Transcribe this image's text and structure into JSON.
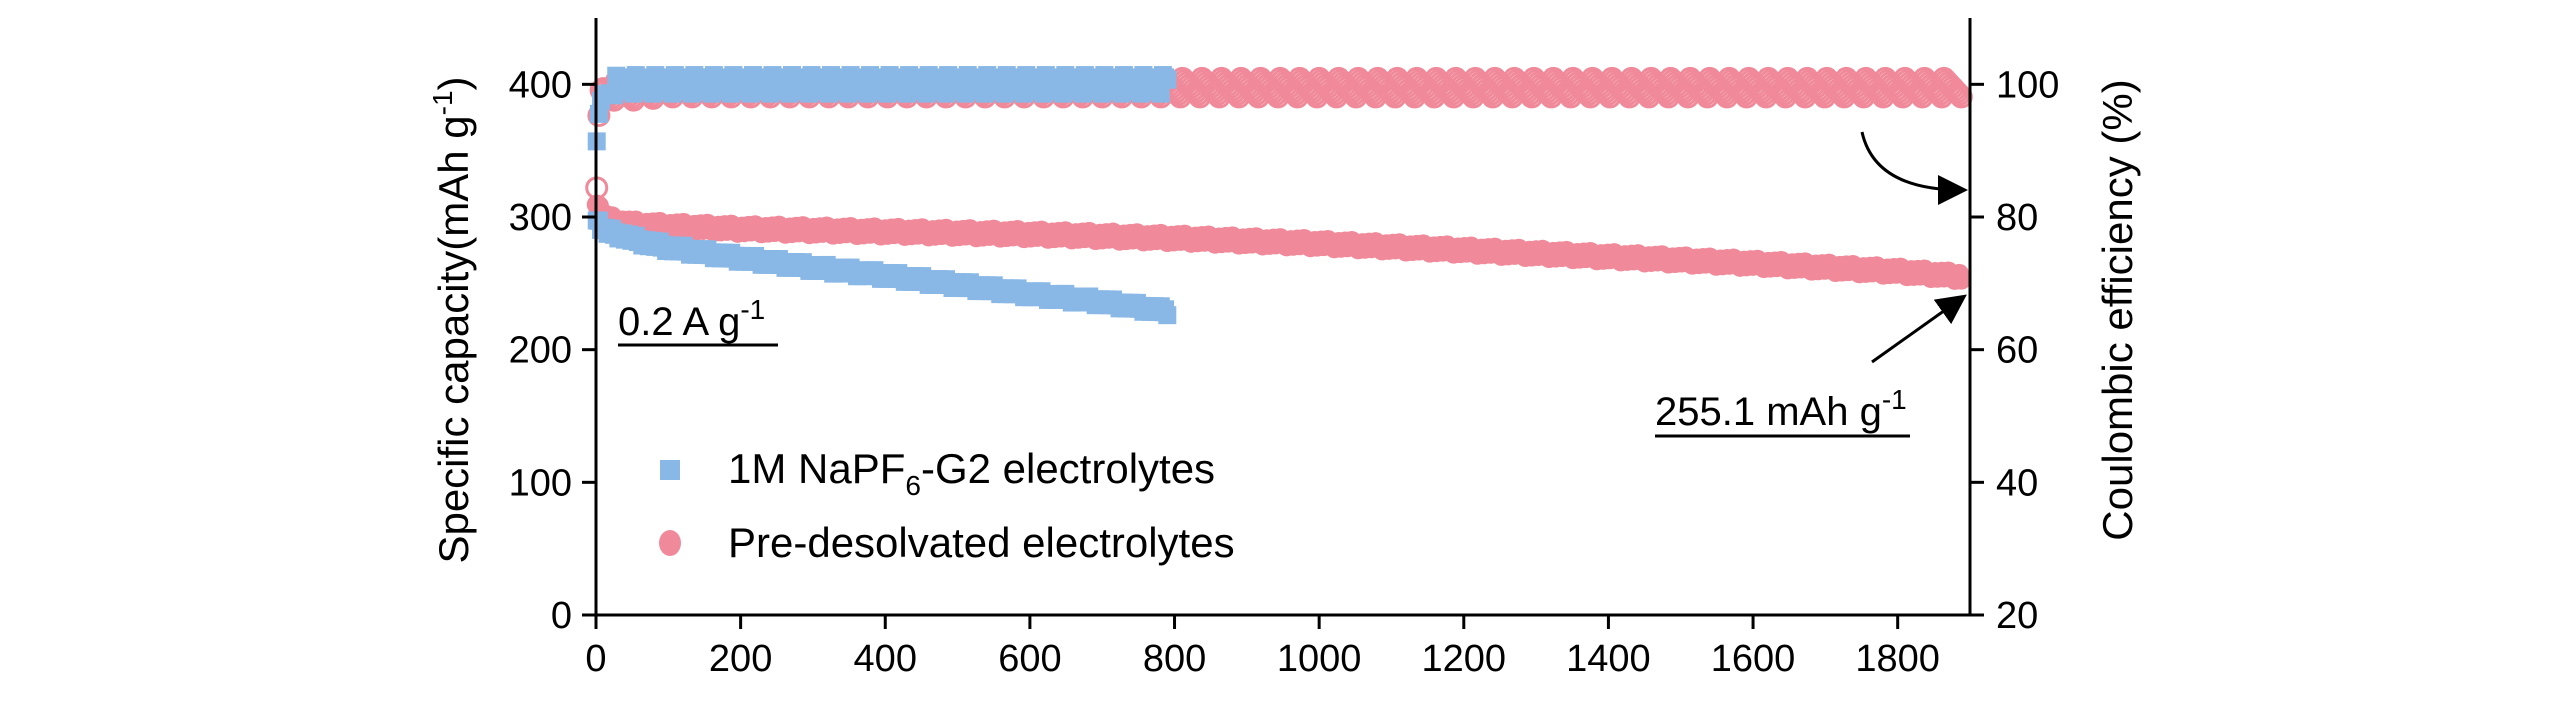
{
  "chart_data": {
    "type": "scatter",
    "x_axis": {
      "label": "",
      "range": [
        0,
        1900
      ],
      "ticks": [
        0,
        200,
        400,
        600,
        800,
        1000,
        1200,
        1400,
        1600,
        1800
      ]
    },
    "y_left": {
      "label_main": "Specific capacity(mAh g",
      "label_sup": "-1",
      "label_close": ")",
      "range": [
        0,
        450
      ],
      "ticks": [
        0,
        100,
        200,
        300,
        400
      ]
    },
    "y_right": {
      "label": "Coulombic efficiency (%)",
      "range": [
        20,
        110
      ],
      "ticks": [
        20,
        40,
        60,
        80,
        100
      ]
    },
    "series": [
      {
        "name": "1M NaPF6-G2 electrolytes",
        "legend_main": "1M NaPF",
        "legend_sub": "6",
        "legend_rest": "-G2 electrolytes",
        "color": "#8ab8e6",
        "marker": "square",
        "capacity": {
          "x": [
            1,
            10,
            30,
            60,
            100,
            150,
            200,
            300,
            400,
            500,
            600,
            700,
            790
          ],
          "y": [
            298,
            290,
            287,
            282,
            277,
            273,
            269,
            262,
            256,
            249,
            242,
            236,
            229
          ]
        },
        "efficiency": {
          "x": [
            1,
            5,
            10,
            20,
            30,
            100,
            200,
            300,
            400,
            500,
            600,
            700,
            790
          ],
          "y": [
            90,
            96,
            98,
            99.5,
            100,
            100,
            100,
            100,
            100,
            100,
            100,
            100,
            100
          ]
        }
      },
      {
        "name": "Pre-desolvated electrolytes",
        "legend_main": "Pre-desolvated electrolytes",
        "color": "#f08a9a",
        "marker": "circle",
        "capacity": {
          "x": [
            1,
            10,
            30,
            60,
            100,
            200,
            400,
            600,
            800,
            1000,
            1200,
            1400,
            1600,
            1800,
            1890
          ],
          "y": [
            310,
            300,
            296,
            294,
            293,
            291,
            289,
            287,
            284,
            280,
            275,
            270,
            265,
            259,
            255.1
          ]
        },
        "efficiency": {
          "x": [
            1,
            5,
            10,
            50,
            100,
            300,
            500,
            800,
            1000,
            1200,
            1400,
            1600,
            1800,
            1890
          ],
          "y": [
            83,
            98,
            99,
            99,
            99.5,
            99.5,
            99.5,
            99.5,
            99.5,
            99.5,
            99.5,
            99.5,
            99.5,
            99.5
          ]
        }
      }
    ],
    "annotations": {
      "rate_main": "0.2 A g",
      "rate_sup": "-1",
      "final_main": "255.1 mAh g",
      "final_sup": "-1",
      "final_value": 255.1
    },
    "legend_position": "bottom-left"
  }
}
